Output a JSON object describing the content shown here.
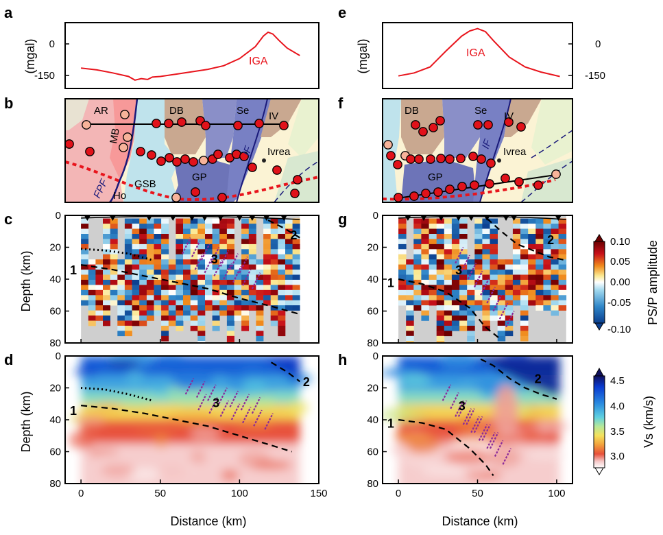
{
  "panel_letters": [
    "a",
    "b",
    "c",
    "d",
    "e",
    "f",
    "g",
    "h"
  ],
  "axes": {
    "gravity_ylabel": "(mgal)",
    "depth_ylabel": "Depth (km)",
    "xlabel": "Distance (km)",
    "gravity_ticks": [
      "0",
      "-150"
    ],
    "depth_ticks": [
      "0",
      "20",
      "40",
      "60",
      "80"
    ],
    "left_x_ticks": [
      "0",
      "50",
      "100",
      "150"
    ],
    "right_x_ticks": [
      "0",
      "50",
      "100"
    ]
  },
  "labels": {
    "iga": "IGA",
    "interfaces": [
      "1",
      "2",
      "3"
    ],
    "map_left": [
      "AR",
      "MB",
      "DB",
      "Se",
      "IV",
      "Ivrea",
      "GP",
      "GSB",
      "Ho",
      "FPF",
      "IF"
    ],
    "map_right": [
      "DB",
      "Se",
      "IV",
      "Ivrea",
      "GP",
      "IF"
    ]
  },
  "colorbars": {
    "psp": {
      "label": "PS/P amplitude",
      "ticks": [
        "0.10",
        "0.05",
        "0.00",
        "-0.05",
        "-0.10"
      ],
      "colors": [
        "#6b0000",
        "#c8101a",
        "#f08a1c",
        "#fbe890",
        "#ffffff",
        "#9fd7ee",
        "#2f86c8",
        "#0b3f8f"
      ]
    },
    "vs": {
      "label": "Vs (km/s)",
      "ticks": [
        "4.5",
        "4.0",
        "3.5",
        "3.0"
      ],
      "colors": [
        "#10105e",
        "#0a3bd0",
        "#2a8be0",
        "#5fd0e0",
        "#b5e89a",
        "#f5e25c",
        "#f2a03c",
        "#e8503a",
        "#f5c8c8",
        "#ffffff"
      ]
    }
  },
  "chart_data": [
    {
      "panel": "a",
      "type": "line",
      "xlabel": "",
      "ylabel": "(mgal)",
      "ylim": [
        -180,
        40
      ],
      "xlim": [
        -10,
        150
      ],
      "annotation": "IGA",
      "series": [
        {
          "x": [
            0,
            10,
            20,
            30,
            34,
            38,
            42,
            45,
            50,
            60,
            70,
            80,
            90,
            100,
            110,
            115,
            118,
            121,
            125,
            130,
            138
          ],
          "y": [
            -112,
            -118,
            -128,
            -140,
            -152,
            -147,
            -150,
            -142,
            -140,
            -132,
            -124,
            -116,
            -104,
            -80,
            -40,
            -5,
            8,
            2,
            -20,
            -45,
            -70
          ]
        }
      ]
    },
    {
      "panel": "e",
      "type": "line",
      "xlabel": "",
      "ylabel": "(mgal)",
      "ylim": [
        -180,
        40
      ],
      "xlim": [
        -10,
        110
      ],
      "annotation": "IGA",
      "series": [
        {
          "x": [
            0,
            10,
            20,
            30,
            40,
            45,
            50,
            55,
            60,
            70,
            80,
            90,
            102
          ],
          "y": [
            -138,
            -128,
            -108,
            -55,
            -5,
            12,
            20,
            10,
            -20,
            -75,
            -108,
            -125,
            -140
          ]
        }
      ]
    },
    {
      "panel": "c",
      "type": "heatmap",
      "xlabel": "",
      "ylabel": "Depth (km)",
      "xlim": [
        -10,
        150
      ],
      "ylim": [
        80,
        0
      ],
      "colorbar": "PS/P amplitude",
      "stations_km": [
        4,
        20,
        43,
        58,
        70,
        78,
        88,
        100,
        108,
        117,
        128
      ],
      "interface_1": {
        "x": [
          0,
          20,
          40,
          60,
          80,
          100,
          120,
          138
        ],
        "y": [
          31,
          34,
          38,
          42,
          46,
          52,
          57,
          62
        ]
      },
      "interface_2": {
        "x": [
          118,
          128,
          138
        ],
        "y": [
          3,
          8,
          14
        ]
      },
      "dotted_mid_crust": {
        "x": [
          0,
          15,
          30,
          45
        ],
        "y": [
          21,
          22,
          24,
          28
        ]
      }
    },
    {
      "panel": "g",
      "type": "heatmap",
      "xlabel": "",
      "ylabel": "",
      "xlim": [
        -10,
        110
      ],
      "ylim": [
        80,
        0
      ],
      "colorbar": "PS/P amplitude",
      "stations_km": [
        6,
        16,
        27,
        38,
        46,
        56,
        68,
        73,
        101
      ],
      "interface_1": {
        "x": [
          0,
          15,
          30,
          45,
          55,
          65
        ],
        "y": [
          40,
          43,
          48,
          58,
          70,
          78
        ]
      },
      "interface_2": {
        "x": [
          56,
          65,
          75,
          85,
          95,
          105
        ],
        "y": [
          2,
          10,
          18,
          22,
          26,
          28
        ]
      }
    },
    {
      "panel": "d",
      "type": "heatmap",
      "xlabel": "Distance (km)",
      "ylabel": "Depth (km)",
      "xlim": [
        -10,
        150
      ],
      "ylim": [
        80,
        0
      ],
      "colorbar": "Vs (km/s)",
      "interface_1": {
        "x": [
          0,
          20,
          40,
          60,
          80,
          100,
          120,
          133
        ],
        "y": [
          31,
          33,
          36,
          40,
          44,
          50,
          56,
          60
        ]
      },
      "interface_2": {
        "x": [
          120,
          130,
          138
        ],
        "y": [
          4,
          10,
          16
        ]
      },
      "dotted_mid_crust": {
        "x": [
          0,
          15,
          30,
          45
        ],
        "y": [
          20,
          21,
          24,
          28
        ]
      }
    },
    {
      "panel": "h",
      "type": "heatmap",
      "xlabel": "Distance (km)",
      "ylabel": "",
      "xlim": [
        -10,
        110
      ],
      "ylim": [
        80,
        0
      ],
      "colorbar": "Vs (km/s)",
      "interface_1": {
        "x": [
          0,
          15,
          30,
          45,
          55,
          60
        ],
        "y": [
          40,
          42,
          46,
          58,
          68,
          75
        ]
      },
      "interface_2": {
        "x": [
          52,
          60,
          70,
          80,
          90,
          100
        ],
        "y": [
          2,
          6,
          14,
          20,
          24,
          27
        ]
      }
    }
  ]
}
